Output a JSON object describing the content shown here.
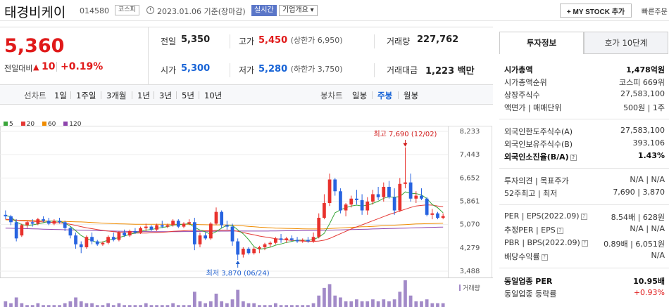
{
  "header": {
    "company_name": "태경비케이",
    "code": "014580",
    "market": "코스피",
    "date_text": "2023.01.06 기준(장마감)",
    "realtime_label": "실시간",
    "corp_info_label": "기업개요 ▾",
    "mystock_label": "+ MY STOCK 추가",
    "quick_order_label": "빠른주문"
  },
  "price": {
    "current": "5,360",
    "change_label": "전일대비",
    "change_icon": "up-triangle-icon",
    "change_value": "10",
    "change_pct": "+0.19%"
  },
  "summary": {
    "prev_label": "전일",
    "prev_value": "5,350",
    "high_label": "고가",
    "high_value": "5,450",
    "upper_limit": "(상한가 6,950)",
    "volume_label": "거래량",
    "volume_value": "227,762",
    "open_label": "시가",
    "open_value": "5,300",
    "low_label": "저가",
    "low_value": "5,280",
    "lower_limit": "(하한가 3,750)",
    "amount_label": "거래대금",
    "amount_value": "1,223 백만"
  },
  "chart_tabs": {
    "line_label": "선차트",
    "line_items": [
      "1일",
      "1주일",
      "3개월",
      "1년",
      "3년",
      "5년",
      "10년"
    ],
    "candle_label": "봉차트",
    "candle_items": [
      "일봉",
      "주봉",
      "월봉"
    ],
    "candle_active": "주봉"
  },
  "chart_data": {
    "type": "candlestick",
    "ma_legend": [
      {
        "name": "5",
        "color": "#3aa63a"
      },
      {
        "name": "20",
        "color": "#e53935"
      },
      {
        "name": "60",
        "color": "#f08c00"
      },
      {
        "name": "120",
        "color": "#8e44ad"
      }
    ],
    "y_ticks": [
      "8,233",
      "7,443",
      "6,652",
      "5,861",
      "5,070",
      "4,279",
      "3,488"
    ],
    "ylim": [
      3488,
      8233
    ],
    "high_annotation": "최고 7,690 (12/02)",
    "low_annotation": "최저 3,870 (06/24)",
    "volume_label": "거래량",
    "candles": [
      [
        5400,
        5550,
        5250,
        5350
      ],
      [
        5350,
        5400,
        5050,
        5150
      ],
      [
        5150,
        5250,
        4500,
        4600
      ],
      [
        4700,
        5100,
        4650,
        5050
      ],
      [
        5050,
        5200,
        4950,
        5150
      ],
      [
        5150,
        5250,
        5000,
        5100
      ],
      [
        5100,
        5300,
        5050,
        5250
      ],
      [
        5250,
        5350,
        5150,
        5200
      ],
      [
        5200,
        5300,
        5050,
        5100
      ],
      [
        5100,
        5250,
        5050,
        5200
      ],
      [
        5200,
        5300,
        5100,
        5150
      ],
      [
        5150,
        5200,
        4850,
        4950
      ],
      [
        4950,
        5000,
        4600,
        4700
      ],
      [
        4700,
        4800,
        4250,
        4400
      ],
      [
        4400,
        4500,
        4100,
        4300
      ],
      [
        4300,
        4700,
        4250,
        4650
      ],
      [
        4650,
        4800,
        4400,
        4500
      ],
      [
        4500,
        4550,
        4350,
        4400
      ],
      [
        4400,
        4500,
        4350,
        4450
      ],
      [
        4450,
        4700,
        4400,
        4650
      ],
      [
        4650,
        4800,
        4500,
        4550
      ],
      [
        4550,
        4850,
        4500,
        4800
      ],
      [
        4800,
        4900,
        4650,
        4700
      ],
      [
        4700,
        4900,
        4650,
        4850
      ],
      [
        4850,
        4950,
        4750,
        4800
      ],
      [
        4800,
        5000,
        4750,
        4950
      ],
      [
        4950,
        5100,
        4850,
        5000
      ],
      [
        5000,
        5050,
        4850,
        4900
      ],
      [
        4900,
        5100,
        4850,
        5050
      ],
      [
        5050,
        5200,
        4950,
        5000
      ],
      [
        5000,
        5100,
        4950,
        5050
      ],
      [
        5050,
        5250,
        5000,
        5200
      ],
      [
        5200,
        5250,
        4950,
        5000
      ],
      [
        5000,
        5150,
        4950,
        5100
      ],
      [
        5100,
        5250,
        5050,
        5150
      ],
      [
        5150,
        5300,
        4200,
        4400
      ],
      [
        4400,
        4800,
        4300,
        4700
      ],
      [
        4700,
        4800,
        4550,
        4600
      ],
      [
        4600,
        5150,
        4550,
        5100
      ],
      [
        5100,
        5650,
        5050,
        5500
      ],
      [
        5500,
        5550,
        4950,
        5050
      ],
      [
        5050,
        5200,
        4900,
        5000
      ],
      [
        5000,
        5100,
        4350,
        4500
      ],
      [
        4500,
        4600,
        3870,
        4050
      ],
      [
        4050,
        4300,
        3950,
        4250
      ],
      [
        4250,
        4300,
        4050,
        4100
      ],
      [
        4100,
        4300,
        4050,
        4250
      ],
      [
        4250,
        4350,
        4100,
        4300
      ],
      [
        4300,
        4450,
        4200,
        4400
      ],
      [
        4400,
        4500,
        4300,
        4450
      ],
      [
        4450,
        4650,
        4400,
        4600
      ],
      [
        4600,
        4750,
        4450,
        4550
      ],
      [
        4550,
        4650,
        4450,
        4600
      ],
      [
        4600,
        4700,
        4500,
        4550
      ],
      [
        4550,
        4650,
        4450,
        4500
      ],
      [
        4500,
        4600,
        4450,
        4550
      ],
      [
        4550,
        4650,
        4450,
        4500
      ],
      [
        4500,
        4800,
        4450,
        4650
      ],
      [
        4650,
        5450,
        4600,
        5300
      ],
      [
        5300,
        6100,
        5250,
        5800
      ],
      [
        5800,
        6800,
        5700,
        6600
      ],
      [
        6600,
        6650,
        6050,
        6200
      ],
      [
        6200,
        6300,
        5450,
        5550
      ],
      [
        5550,
        5800,
        5350,
        5750
      ],
      [
        5750,
        6050,
        5650,
        5950
      ],
      [
        5950,
        6250,
        5750,
        5900
      ],
      [
        5900,
        6100,
        5400,
        5550
      ],
      [
        5550,
        6000,
        5400,
        5850
      ],
      [
        5850,
        6250,
        5750,
        6100
      ],
      [
        6100,
        6350,
        5900,
        6000
      ],
      [
        6000,
        6500,
        5850,
        6350
      ],
      [
        6350,
        6550,
        5950,
        6000
      ],
      [
        6000,
        6300,
        5400,
        5550
      ],
      [
        5550,
        6650,
        5500,
        6450
      ],
      [
        6450,
        7690,
        6300,
        6500
      ],
      [
        6500,
        6800,
        5850,
        5950
      ],
      [
        5950,
        6200,
        5800,
        6050
      ],
      [
        6050,
        6300,
        5900,
        5950
      ],
      [
        5950,
        6000,
        5350,
        5400
      ],
      [
        5400,
        5600,
        5250,
        5450
      ],
      [
        5450,
        5500,
        5250,
        5300
      ],
      [
        5300,
        5450,
        5250,
        5360
      ]
    ],
    "ma5": [
      5380,
      5330,
      5160,
      5070,
      5040,
      5060,
      5090,
      5130,
      5180,
      5190,
      5180,
      5120,
      5010,
      4860,
      4700,
      4600,
      4520,
      4460,
      4480,
      4540,
      4580,
      4630,
      4680,
      4740,
      4780,
      4840,
      4880,
      4900,
      4940,
      4970,
      5000,
      5050,
      5070,
      5080,
      5100,
      4980,
      4880,
      4820,
      4740,
      4830,
      4950,
      5050,
      5040,
      4890,
      4760,
      4560,
      4320,
      4230,
      4260,
      4300,
      4370,
      4410,
      4460,
      4500,
      4540,
      4540,
      4530,
      4560,
      4640,
      4770,
      5100,
      5470,
      5570,
      5640,
      5700,
      5730,
      5700,
      5730,
      5790,
      5860,
      5960,
      6010,
      6000,
      6020,
      6180,
      6130,
      6120,
      6080,
      5950,
      5750,
      5640,
      5470
    ],
    "ma20": [
      5250,
      5240,
      5220,
      5200,
      5190,
      5180,
      5170,
      5160,
      5150,
      5140,
      5130,
      5110,
      5080,
      5040,
      5000,
      4960,
      4930,
      4900,
      4870,
      4850,
      4830,
      4810,
      4800,
      4790,
      4780,
      4780,
      4780,
      4790,
      4800,
      4810,
      4820,
      4840,
      4850,
      4860,
      4870,
      4870,
      4870,
      4860,
      4860,
      4870,
      4880,
      4880,
      4870,
      4840,
      4800,
      4760,
      4720,
      4680,
      4650,
      4620,
      4590,
      4570,
      4550,
      4530,
      4520,
      4510,
      4500,
      4500,
      4510,
      4540,
      4600,
      4680,
      4760,
      4840,
      4920,
      4990,
      5060,
      5130,
      5200,
      5270,
      5340,
      5410,
      5470,
      5530,
      5590,
      5650,
      5700,
      5720,
      5740,
      5730,
      5700,
      5680
    ],
    "ma60": [
      5230,
      5225,
      5220,
      5215,
      5210,
      5205,
      5200,
      5195,
      5190,
      5185,
      5180,
      5175,
      5170,
      5165,
      5160,
      5150,
      5140,
      5130,
      5120,
      5110,
      5100,
      5095,
      5090,
      5085,
      5080,
      5080,
      5080,
      5080,
      5080,
      5080,
      5080,
      5080,
      5080,
      5080,
      5080,
      5075,
      5070,
      5065,
      5060,
      5060,
      5060,
      5055,
      5050,
      5040,
      5025,
      5010,
      4995,
      4980,
      4970,
      4960,
      4950,
      4945,
      4940,
      4935,
      4930,
      4925,
      4920,
      4920,
      4920,
      4925,
      4935,
      4945,
      4955,
      4965,
      4975,
      4985,
      4995,
      5000,
      5010,
      5020,
      5030,
      5040,
      5050,
      5060,
      5070,
      5080,
      5090,
      5095,
      5100,
      5105,
      5110,
      5115
    ],
    "ma120": [
      4950,
      4945,
      4940,
      4935,
      4930,
      4925,
      4920,
      4915,
      4910,
      4905,
      4900,
      4895,
      4890,
      4885,
      4880,
      4875,
      4870,
      4865,
      4860,
      4855,
      4850,
      4845,
      4840,
      4838,
      4836,
      4834,
      4832,
      4830,
      4830,
      4830,
      4830,
      4830,
      4830,
      4832,
      4834,
      4836,
      4838,
      4840,
      4842,
      4844,
      4846,
      4848,
      4850,
      4850,
      4850,
      4850,
      4850,
      4850,
      4850,
      4852,
      4854,
      4856,
      4858,
      4860,
      4862,
      4864,
      4866,
      4868,
      4870,
      4875,
      4880,
      4885,
      4890,
      4895,
      4900,
      4905,
      4910,
      4915,
      4920,
      4925,
      4930,
      4935,
      4940,
      4945,
      4950,
      4955,
      4960,
      4965,
      4970,
      4975,
      4980,
      4985
    ],
    "volumes": [
      3,
      2,
      5,
      2,
      1,
      1,
      2,
      1,
      1,
      1,
      1,
      2,
      3,
      5,
      3,
      2,
      2,
      1,
      1,
      2,
      1,
      2,
      1,
      1,
      1,
      1,
      2,
      1,
      1,
      1,
      1,
      2,
      1,
      1,
      1,
      8,
      3,
      2,
      3,
      7,
      3,
      2,
      4,
      9,
      3,
      2,
      2,
      1,
      1,
      1,
      2,
      1,
      1,
      1,
      1,
      1,
      1,
      2,
      6,
      10,
      12,
      6,
      5,
      3,
      3,
      4,
      3,
      3,
      4,
      3,
      4,
      3,
      4,
      8,
      14,
      6,
      3,
      3,
      4,
      2,
      2,
      2
    ]
  },
  "right_panel": {
    "tab_invest": "투자정보",
    "tab_hoga": "호가 10단계",
    "mcap_label": "시가총액",
    "mcap_value": "1,478억원",
    "rank_label": "시가총액순위",
    "rank_value": "코스피 669위",
    "shares_label": "상장주식수",
    "shares_value": "27,583,100",
    "par_label": "액면가 | 매매단위",
    "par_value": "500원 | 1주",
    "foreign_limit_label": "외국인한도주식수(A)",
    "foreign_limit_value": "27,583,100",
    "foreign_hold_label": "외국인보유주식수(B)",
    "foreign_hold_value": "393,106",
    "foreign_ratio_label": "외국인소진율(B/A)",
    "foreign_ratio_value": "1.43%",
    "opinion_label": "투자의견 | 목표주가",
    "opinion_value": "N/A | N/A",
    "w52_label": "52주최고 | 최저",
    "w52_value": "7,690 | 3,870",
    "per_label": "PER | EPS(2022.09)",
    "per_value": "8.54배 | 628원",
    "est_per_label": "추정PER | EPS",
    "est_per_value": "N/A | N/A",
    "pbr_label": "PBR | BPS(2022.09)",
    "pbr_value": "0.89배 | 6,051원",
    "dividend_label": "배당수익률",
    "dividend_value": "N/A",
    "sector_per_label": "동일업종 PER",
    "sector_per_value": "10.95배",
    "sector_chg_label": "동일업종 등락률",
    "sector_chg_value": "+0.93%"
  }
}
